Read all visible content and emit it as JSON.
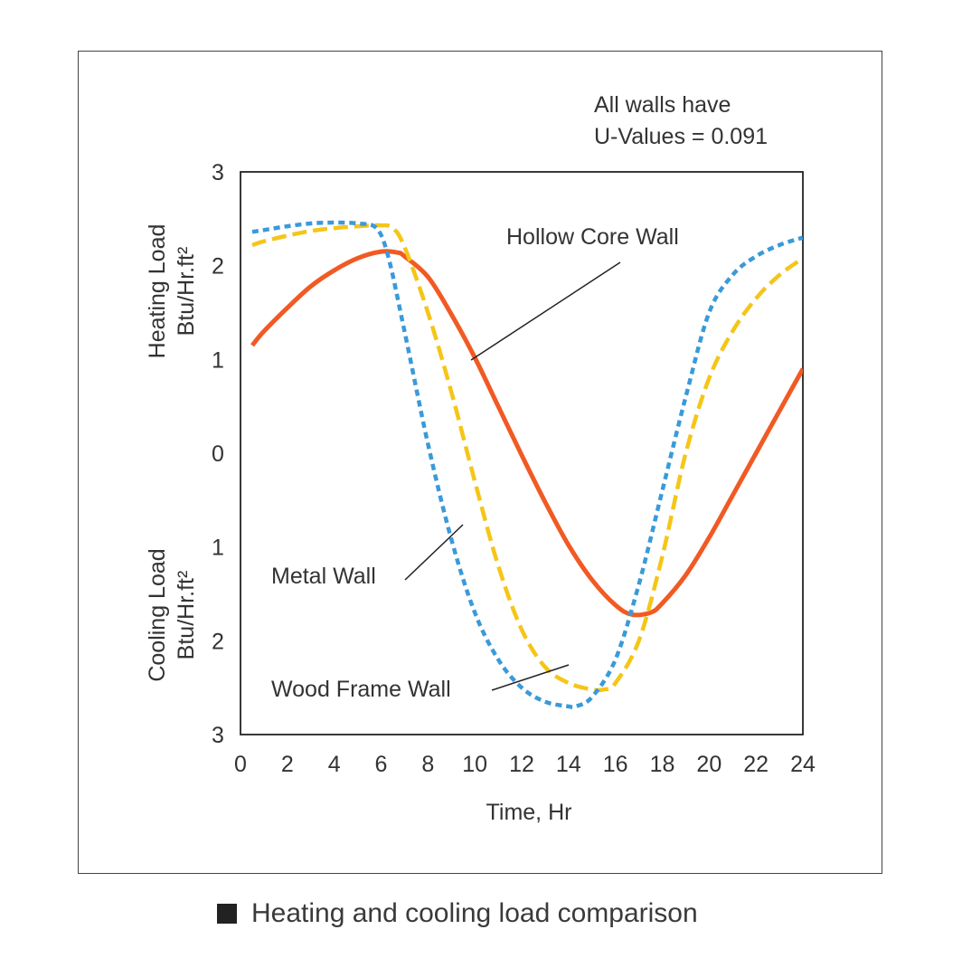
{
  "caption": {
    "text": "Heating and cooling load comparison",
    "marker_color": "#222222"
  },
  "chart_data": {
    "type": "line",
    "title": "",
    "xlabel": "Time, Hr",
    "xlim": [
      0,
      24
    ],
    "x_ticks": [
      "0",
      "2",
      "4",
      "6",
      "8",
      "10",
      "12",
      "14",
      "16",
      "18",
      "20",
      "22",
      "24"
    ],
    "ylim": [
      -3,
      3
    ],
    "y_ticks": [
      {
        "value": 3,
        "label": "3"
      },
      {
        "value": 2,
        "label": "2"
      },
      {
        "value": 1,
        "label": "1"
      },
      {
        "value": 0,
        "label": "0"
      },
      {
        "value": -1,
        "label": "1"
      },
      {
        "value": -2,
        "label": "2"
      },
      {
        "value": -3,
        "label": "3"
      }
    ],
    "ylabel_heating": {
      "line1": "Heating Load",
      "line2": "Btu/Hr.ft²"
    },
    "ylabel_cooling": {
      "line1": "Cooling Load",
      "line2": "Btu/Hr.ft²"
    },
    "grid": false,
    "note": {
      "line1": "All walls have",
      "line2": "U-Values = 0.091"
    },
    "series": [
      {
        "name": "Hollow Core Wall",
        "color": "#f15a24",
        "style": "solid",
        "x": [
          0.5,
          1,
          2,
          3,
          4,
          5,
          6,
          6.7,
          7,
          8,
          9,
          10,
          11,
          12,
          13,
          14,
          15,
          16,
          16.7,
          17.5,
          18,
          19,
          20,
          21,
          22,
          23,
          24
        ],
        "y": [
          1.15,
          1.3,
          1.55,
          1.78,
          1.95,
          2.08,
          2.15,
          2.14,
          2.1,
          1.88,
          1.48,
          1.02,
          0.5,
          -0.02,
          -0.52,
          -0.98,
          -1.35,
          -1.62,
          -1.72,
          -1.7,
          -1.6,
          -1.3,
          -0.9,
          -0.45,
          0.0,
          0.45,
          0.9
        ]
      },
      {
        "name": "Metal Wall",
        "color": "#3a9ad9",
        "style": "dotted",
        "x": [
          0.5,
          1,
          2,
          3,
          4,
          5,
          5.8,
          6.3,
          7,
          8,
          9,
          10,
          11,
          12,
          13,
          14,
          14.3,
          15,
          16,
          17,
          18,
          19,
          20,
          21,
          22,
          23,
          24
        ],
        "y": [
          2.36,
          2.38,
          2.42,
          2.45,
          2.46,
          2.45,
          2.4,
          2.1,
          1.3,
          0.1,
          -0.92,
          -1.7,
          -2.2,
          -2.5,
          -2.65,
          -2.7,
          -2.7,
          -2.6,
          -2.2,
          -1.4,
          -0.4,
          0.6,
          1.5,
          1.9,
          2.1,
          2.22,
          2.3
        ]
      },
      {
        "name": "Wood Frame Wall",
        "color": "#f5c518",
        "style": "dashed",
        "x": [
          0.5,
          1,
          2,
          3,
          4,
          5,
          6,
          6.5,
          7,
          8,
          9,
          10,
          11,
          12,
          13,
          14,
          15,
          15.5,
          16,
          17,
          18,
          19,
          20,
          21,
          22,
          23,
          24
        ],
        "y": [
          2.22,
          2.26,
          2.32,
          2.37,
          2.4,
          2.42,
          2.43,
          2.4,
          2.2,
          1.5,
          0.65,
          -0.3,
          -1.2,
          -1.88,
          -2.28,
          -2.45,
          -2.52,
          -2.52,
          -2.45,
          -2.0,
          -1.1,
          0.0,
          0.8,
          1.3,
          1.65,
          1.9,
          2.08
        ]
      }
    ],
    "annotations": [
      {
        "text": "Hollow Core Wall",
        "series": "Hollow Core Wall"
      },
      {
        "text": "Metal Wall",
        "series": "Metal Wall"
      },
      {
        "text": "Wood Frame Wall",
        "series": "Wood Frame Wall"
      }
    ]
  }
}
